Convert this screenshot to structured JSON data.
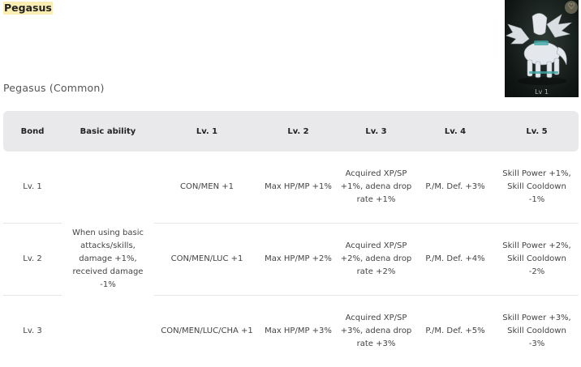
{
  "title": "Pegasus",
  "subtitle": "Pegasus (Common)",
  "portrait": {
    "level_label": "Lv 1",
    "icon": "heart-icon"
  },
  "table": {
    "headers": [
      "Bond",
      "Basic ability",
      "Lv. 1",
      "Lv. 2",
      "Lv. 3",
      "Lv. 4",
      "Lv. 5"
    ],
    "basic_ability": "When using basic attacks/skills, damage +1%, received damage -1%",
    "rows": [
      {
        "bond": "Lv. 1",
        "lv1": "CON/MEN +1",
        "lv2": "Max HP/MP +1%",
        "lv3": "Acquired XP/SP +1%, adena drop rate +1%",
        "lv4": "P./M. Def. +3%",
        "lv5": "Skill Power +1%, Skill Cooldown -1%"
      },
      {
        "bond": "Lv. 2",
        "lv1": "CON/MEN/LUC +1",
        "lv2": "Max HP/MP +2%",
        "lv3": "Acquired XP/SP +2%, adena drop rate +2%",
        "lv4": "P./M. Def. +4%",
        "lv5": "Skill Power +2%, Skill Cooldown -2%"
      },
      {
        "bond": "Lv. 3",
        "lv1": "CON/MEN/LUC/CHA +1",
        "lv2": "Max HP/MP +3%",
        "lv3": "Acquired XP/SP +3%, adena drop rate +3%",
        "lv4": "P./M. Def. +5%",
        "lv5": "Skill Power +3%, Skill Cooldown -3%"
      }
    ]
  }
}
